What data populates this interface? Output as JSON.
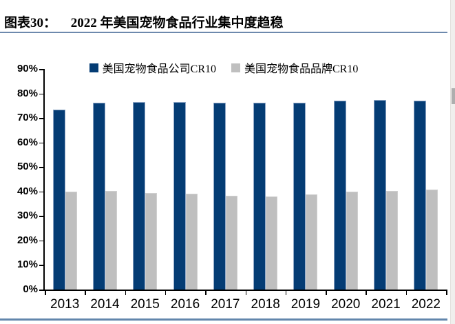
{
  "header": {
    "figure_label": "图表30：",
    "title": "2022 年美国宠物食品行业集中度趋稳"
  },
  "chart_data": {
    "type": "bar",
    "title": "2022 年美国宠物食品行业集中度趋稳",
    "categories": [
      "2013",
      "2014",
      "2015",
      "2016",
      "2017",
      "2018",
      "2019",
      "2020",
      "2021",
      "2022"
    ],
    "series": [
      {
        "name": "美国宠物食品公司CR10",
        "color": "#043c74",
        "values": [
          73.5,
          76.1,
          76.6,
          76.4,
          76.1,
          76.1,
          76.1,
          77.0,
          77.4,
          77.2
        ]
      },
      {
        "name": "美国宠物食品品牌CR10",
        "color": "#bfbfbf",
        "values": [
          39.8,
          40.2,
          39.5,
          39.0,
          38.3,
          38.0,
          38.8,
          40.0,
          40.2,
          40.7
        ]
      }
    ],
    "xlabel": "",
    "ylabel": "",
    "ylim": [
      0,
      90
    ],
    "ytick_step": 10,
    "ytick_suffix": "%",
    "grid": false,
    "legend_position": "top-center"
  },
  "colors": {
    "axis": "#000000",
    "title_underline": "#6d89ad",
    "bottom_rule": "#6286ac",
    "scrollbar_track": "#f0efed",
    "scrollbar_thumb": "#aeaeae"
  }
}
